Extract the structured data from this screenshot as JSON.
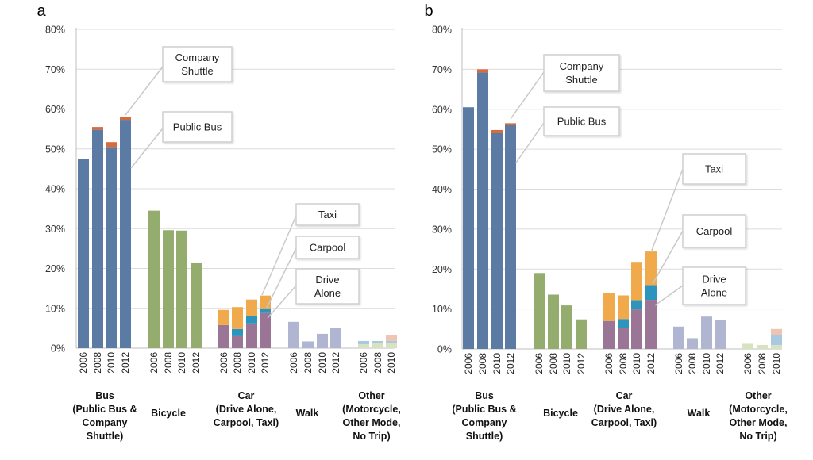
{
  "chart_data": [
    {
      "type": "bar",
      "panel_label": "a",
      "ylim": [
        0,
        80
      ],
      "y_ticks": [
        "0%",
        "10%",
        "20%",
        "30%",
        "40%",
        "50%",
        "60%",
        "70%",
        "80%"
      ],
      "grid": true,
      "groups": [
        {
          "name_lines": [
            "Bus",
            "(Public Bus &",
            "Company",
            "Shuttle)"
          ],
          "categories": [
            "2006",
            "2008",
            "2010",
            "2012"
          ]
        },
        {
          "name_lines": [
            "Bicycle"
          ],
          "categories": [
            "2006",
            "2008",
            "2010",
            "2012"
          ]
        },
        {
          "name_lines": [
            "Car",
            "(Drive Alone,",
            "Carpool, Taxi)"
          ],
          "categories": [
            "2006",
            "2008",
            "2010",
            "2012"
          ]
        },
        {
          "name_lines": [
            "Walk"
          ],
          "categories": [
            "2006",
            "2008",
            "2010",
            "2012"
          ]
        },
        {
          "name_lines": [
            "Other",
            "(Motorcycle,",
            "Other Mode,",
            "No Trip)"
          ],
          "categories": [
            "2006",
            "2008",
            "2010"
          ]
        }
      ],
      "series": [
        {
          "name": "Public Bus",
          "group": 0,
          "color": "#5b7ba5",
          "values": [
            47.5,
            54.8,
            50.5,
            57.3
          ]
        },
        {
          "name": "Company Shuttle",
          "group": 0,
          "color": "#d86a3c",
          "values": [
            0,
            0.7,
            1.2,
            0.8
          ]
        },
        {
          "group": 1,
          "color": "#94ad6e",
          "values": [
            34.5,
            29.6,
            29.5,
            21.5
          ]
        },
        {
          "name": "Drive Alone",
          "group": 2,
          "color": "#9b7596",
          "values": [
            5.8,
            3.0,
            6.2,
            8.8
          ]
        },
        {
          "name": "Carpool",
          "group": 2,
          "color": "#2d94bd",
          "values": [
            0,
            1.8,
            1.8,
            1.2
          ]
        },
        {
          "name": "Taxi",
          "group": 2,
          "color": "#f0a94b",
          "values": [
            3.8,
            5.5,
            4.2,
            3.2
          ]
        },
        {
          "group": 3,
          "color": "#b0b6d1",
          "values": [
            6.6,
            1.7,
            3.6,
            5.1
          ]
        },
        {
          "group": 4,
          "color": "#d7e2be",
          "values": [
            1.0,
            1.3,
            1.2
          ]
        },
        {
          "group": 4,
          "color": "#a9c9e3",
          "values": [
            0.8,
            0.5,
            0.6
          ]
        },
        {
          "group": 4,
          "color": "#efc4b2",
          "values": [
            0,
            0,
            1.5
          ]
        }
      ],
      "callouts": [
        {
          "lines": [
            "Company",
            "Shuttle"
          ]
        },
        {
          "lines": [
            "Public Bus"
          ]
        },
        {
          "lines": [
            "Taxi"
          ]
        },
        {
          "lines": [
            "Carpool"
          ]
        },
        {
          "lines": [
            "Drive",
            "Alone"
          ]
        }
      ]
    },
    {
      "type": "bar",
      "panel_label": "b",
      "ylim": [
        0,
        80
      ],
      "y_ticks": [
        "0%",
        "10%",
        "20%",
        "30%",
        "40%",
        "50%",
        "60%",
        "70%",
        "80%"
      ],
      "grid": true,
      "groups": [
        {
          "name_lines": [
            "Bus",
            "(Public Bus &",
            "Company",
            "Shuttle)"
          ],
          "categories": [
            "2006",
            "2008",
            "2010",
            "2012"
          ]
        },
        {
          "name_lines": [
            "Bicycle"
          ],
          "categories": [
            "2006",
            "2008",
            "2010",
            "2012"
          ]
        },
        {
          "name_lines": [
            "Car",
            "(Drive Alone,",
            "Carpool, Taxi)"
          ],
          "categories": [
            "2006",
            "2008",
            "2010",
            "2012"
          ]
        },
        {
          "name_lines": [
            "Walk"
          ],
          "categories": [
            "2006",
            "2008",
            "2010",
            "2012"
          ]
        },
        {
          "name_lines": [
            "Other",
            "(Motorcycle,",
            "Other Mode,",
            "No Trip)"
          ],
          "categories": [
            "2006",
            "2008",
            "2010"
          ]
        }
      ],
      "series": [
        {
          "name": "Public Bus",
          "group": 0,
          "color": "#5b7ba5",
          "values": [
            60.5,
            69.2,
            54.0,
            56.0
          ]
        },
        {
          "name": "Company Shuttle",
          "group": 0,
          "color": "#d86a3c",
          "values": [
            0,
            0.8,
            0.8,
            0.5
          ]
        },
        {
          "group": 1,
          "color": "#94ad6e",
          "values": [
            19.0,
            13.6,
            10.9,
            7.4
          ]
        },
        {
          "name": "Drive Alone",
          "group": 2,
          "color": "#9b7596",
          "values": [
            7.0,
            5.3,
            9.9,
            12.3
          ]
        },
        {
          "name": "Carpool",
          "group": 2,
          "color": "#2d94bd",
          "values": [
            0,
            2.2,
            2.3,
            3.7
          ]
        },
        {
          "name": "Taxi",
          "group": 2,
          "color": "#f0a94b",
          "values": [
            7.0,
            5.9,
            9.6,
            8.4
          ]
        },
        {
          "group": 3,
          "color": "#b0b6d1",
          "values": [
            5.6,
            2.7,
            8.1,
            7.3
          ]
        },
        {
          "group": 4,
          "color": "#d7e2be",
          "values": [
            1.3,
            1.0,
            1.0
          ]
        },
        {
          "group": 4,
          "color": "#a9c9e3",
          "values": [
            0,
            0,
            2.5
          ]
        },
        {
          "group": 4,
          "color": "#efc4b2",
          "values": [
            0,
            0,
            1.5
          ]
        }
      ],
      "callouts": [
        {
          "lines": [
            "Company",
            "Shuttle"
          ]
        },
        {
          "lines": [
            "Public Bus"
          ]
        },
        {
          "lines": [
            "Taxi"
          ]
        },
        {
          "lines": [
            "Carpool"
          ]
        },
        {
          "lines": [
            "Drive",
            "Alone"
          ]
        }
      ]
    }
  ]
}
